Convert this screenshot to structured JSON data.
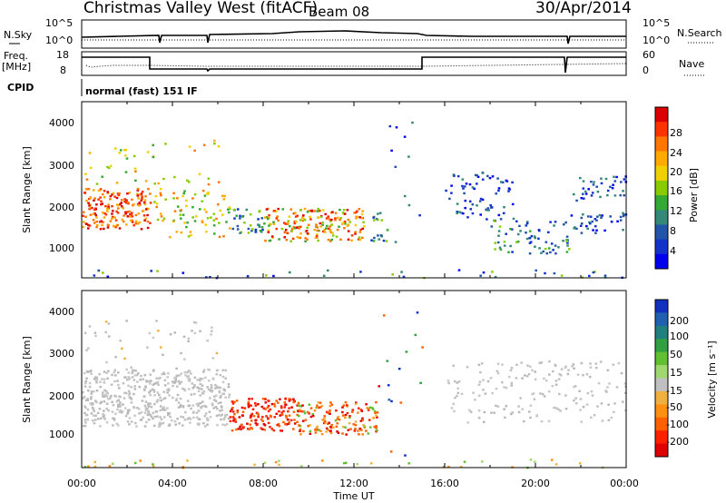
{
  "header": {
    "title": "Christmas Valley West (fitACF)",
    "beam": "Beam 08",
    "date": "30/Apr/2014"
  },
  "top_panels": {
    "nsky_label": "N.Sky",
    "nsky_ticks": [
      "10^5",
      "10^0"
    ],
    "nsearch_label": "N.Search",
    "nsearch_ticks": [
      "10^5",
      "10^0"
    ],
    "freq_label": "Freq.",
    "freq_unit": "[MHz]",
    "freq_ticks": [
      "18",
      "8"
    ],
    "nave_label": "Nave",
    "nave_ticks": [
      "60",
      "0"
    ],
    "cpid_label": "CPID",
    "cpid_value": "normal (fast) 151 IF"
  },
  "chart_data": [
    {
      "type": "heatmap",
      "name": "power",
      "ylabel": "Slant Range [km]",
      "yticks": [
        "4000",
        "3000",
        "2000",
        "1000"
      ],
      "ylim": [
        180,
        4500
      ],
      "colorbar_label": "Power [dB]",
      "colorbar_ticks": [
        "28",
        "24",
        "20",
        "16",
        "12",
        "8",
        "4"
      ],
      "colorbar_colors": [
        "#dd0000",
        "#ff3300",
        "#ff7700",
        "#ffaa00",
        "#f0d000",
        "#88cc00",
        "#33aa33",
        "#338877",
        "#2255aa",
        "#1133cc",
        "#0000ee"
      ]
    },
    {
      "type": "heatmap",
      "name": "velocity",
      "ylabel": "Slant Range [km]",
      "yticks": [
        "4000",
        "3000",
        "2000",
        "1000"
      ],
      "ylim": [
        180,
        4500
      ],
      "colorbar_label": "Velocity [m s⁻¹]",
      "colorbar_ticks": [
        "200",
        "100",
        "50",
        "15",
        "-15",
        "-50",
        "-100",
        "-200"
      ],
      "colorbar_colors": [
        "#1030c0",
        "#2060b0",
        "#208080",
        "#30a040",
        "#60c030",
        "#a0d870",
        "#c0c0c0",
        "#f0b040",
        "#ff9010",
        "#ff6000",
        "#ff2000",
        "#e00000"
      ]
    }
  ],
  "xaxis": {
    "label": "Time UT",
    "ticks": [
      "00:00",
      "04:00",
      "08:00",
      "12:00",
      "16:00",
      "20:00",
      "00:00"
    ]
  }
}
